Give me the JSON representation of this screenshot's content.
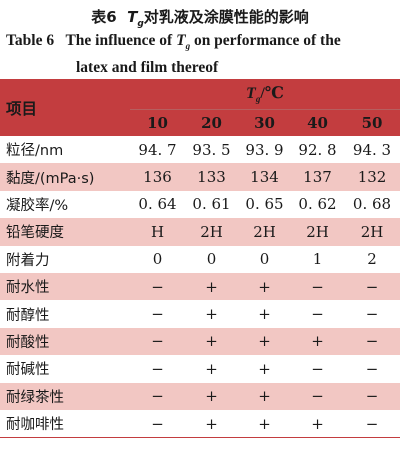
{
  "caption": {
    "cn_prefix": "表6",
    "tg_symbol": "T",
    "tg_sub": "g",
    "cn_suffix": "对乳液及涂膜性能的影响",
    "en_prefix": "Table 6   The influence of ",
    "en_suffix": " on performance of the",
    "en_line2": "latex and film thereof"
  },
  "table": {
    "corner_label": "项目",
    "group_header_suffix": "/℃",
    "columns": [
      "10",
      "20",
      "30",
      "40",
      "50"
    ],
    "rows": [
      {
        "label": "粒径/nm",
        "values": [
          "94. 7",
          "93. 5",
          "93. 9",
          "92. 8",
          "94. 3"
        ]
      },
      {
        "label": "黏度/(mPa·s)",
        "values": [
          "136",
          "133",
          "134",
          "137",
          "132"
        ]
      },
      {
        "label": "凝胶率/%",
        "values": [
          "0. 64",
          "0. 61",
          "0. 65",
          "0. 62",
          "0. 68"
        ]
      },
      {
        "label": "铅笔硬度",
        "values": [
          "H",
          "2H",
          "2H",
          "2H",
          "2H"
        ]
      },
      {
        "label": "附着力",
        "values": [
          "0",
          "0",
          "0",
          "1",
          "2"
        ]
      },
      {
        "label": "耐水性",
        "values": [
          "−",
          "+",
          "+",
          "−",
          "−"
        ]
      },
      {
        "label": "耐醇性",
        "values": [
          "−",
          "+",
          "+",
          "−",
          "−"
        ]
      },
      {
        "label": "耐酸性",
        "values": [
          "−",
          "+",
          "+",
          "+",
          "−"
        ]
      },
      {
        "label": "耐碱性",
        "values": [
          "−",
          "+",
          "+",
          "−",
          "−"
        ]
      },
      {
        "label": "耐绿茶性",
        "values": [
          "−",
          "+",
          "+",
          "−",
          "−"
        ]
      },
      {
        "label": "耐咖啡性",
        "values": [
          "−",
          "+",
          "+",
          "+",
          "−"
        ]
      }
    ]
  },
  "colors": {
    "header_bg": "#c33d3f",
    "stripe_bg": "#f2c7c3"
  }
}
